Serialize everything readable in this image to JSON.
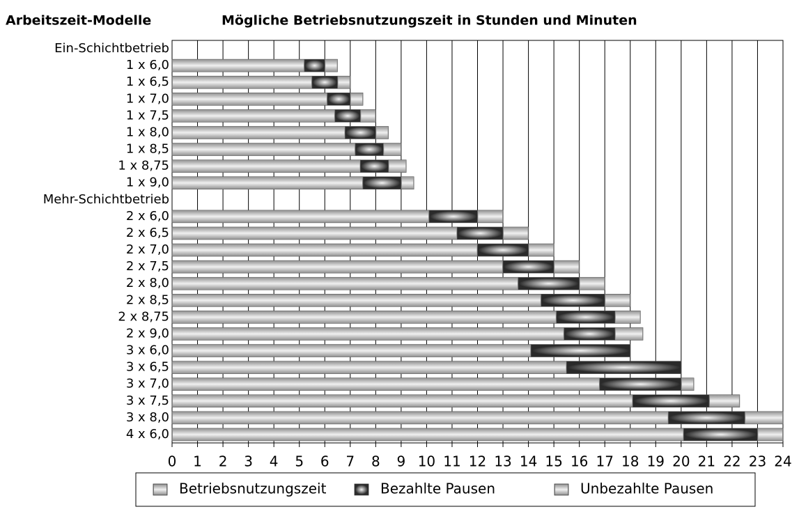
{
  "chart_data": {
    "type": "stacked-bar-horizontal",
    "title": "Mögliche Betriebsnutzungszeit in Stunden und Minuten",
    "y_label": "Arbeitszeit-Modelle",
    "categories": [
      "Ein-Schichtbetrieb",
      "1 x 6,0",
      "1 x 6,5",
      "1 x 7,0",
      "1 x 7,5",
      "1 x 8,0",
      "1 x 8,5",
      "1 x 8,75",
      "1 x 9,0",
      "Mehr-Schichtbetrieb",
      "2 x 6,0",
      "2 x 6,5",
      "2 x 7,0",
      "2 x 7,5",
      "2 x 8,0",
      "2 x 8,5",
      "2 x 8,75",
      "2 x 9,0",
      "3 x 6,0",
      "3 x 6,5",
      "3 x 7,0",
      "3 x 7,5",
      "3 x 8,0",
      "4 x 6,0"
    ],
    "series": [
      {
        "name": "Betriebsnutzungszeit",
        "color": "#9a9a9a",
        "style": "shine",
        "values": [
          null,
          5.2,
          5.5,
          6.1,
          6.4,
          6.8,
          7.2,
          7.4,
          7.5,
          null,
          10.1,
          11.2,
          12.0,
          13.0,
          13.6,
          14.5,
          15.1,
          15.4,
          14.1,
          15.5,
          16.8,
          18.1,
          19.5,
          20.1
        ]
      },
      {
        "name": "Bezahlte Pausen",
        "color": "#2a2a2a",
        "style": "glow",
        "values": [
          null,
          0.8,
          1.0,
          0.9,
          1.0,
          1.2,
          1.1,
          1.1,
          1.5,
          null,
          1.9,
          1.8,
          2.0,
          2.0,
          2.4,
          2.5,
          2.3,
          2.0,
          3.9,
          4.5,
          3.2,
          3.0,
          3.0,
          2.9
        ]
      },
      {
        "name": "Unbezahlte Pausen",
        "color": "#9c9c9c",
        "style": "shine",
        "values": [
          null,
          0.5,
          0.5,
          0.5,
          0.6,
          0.5,
          0.7,
          0.7,
          0.5,
          null,
          1.0,
          1.0,
          1.0,
          1.0,
          1.0,
          1.0,
          1.0,
          1.1,
          0,
          0,
          0.5,
          1.2,
          1.5,
          1.0
        ]
      }
    ],
    "xlim": [
      0,
      24
    ],
    "xticks": [
      0,
      1,
      2,
      3,
      4,
      5,
      6,
      7,
      8,
      9,
      10,
      11,
      12,
      13,
      14,
      15,
      16,
      17,
      18,
      19,
      20,
      21,
      22,
      23,
      24
    ],
    "grid": true,
    "legend": "bottom"
  }
}
